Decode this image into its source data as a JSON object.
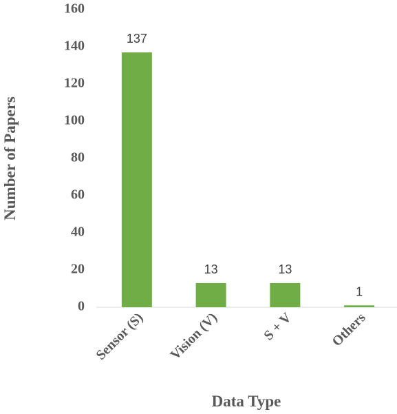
{
  "chart_data": {
    "type": "bar",
    "categories": [
      "Sensor (S)",
      "Vision (V)",
      "S + V",
      "Others"
    ],
    "values": [
      137,
      13,
      13,
      1
    ],
    "color": "#70ad47",
    "ylim": [
      0,
      160
    ],
    "yticks": [
      0,
      20,
      40,
      60,
      80,
      100,
      120,
      140,
      160
    ],
    "grid": false,
    "xlabel": "Data Type",
    "ylabel": "Number of Papers"
  }
}
